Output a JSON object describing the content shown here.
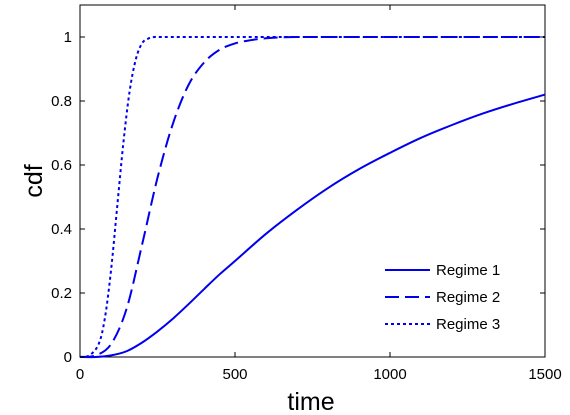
{
  "chart_data": {
    "type": "line",
    "xlabel": "time",
    "ylabel": "cdf",
    "xlim": [
      0,
      1500
    ],
    "ylim": [
      0,
      1.1
    ],
    "xticks": [
      0,
      500,
      1000,
      1500
    ],
    "yticks": [
      0,
      0.2,
      0.4,
      0.6,
      0.8,
      1
    ],
    "ytick_labels": [
      "0",
      "0.2",
      "0.4",
      "0.6",
      "0.8",
      "1"
    ],
    "xtick_labels": [
      "0",
      "500",
      "1000",
      "1500"
    ],
    "grid": false,
    "legend_position": "bottom-right",
    "line_color": "#0000ee",
    "series": [
      {
        "name": "Regime 1",
        "style": "solid",
        "x": [
          0,
          50,
          100,
          150,
          200,
          250,
          300,
          350,
          400,
          450,
          500,
          600,
          700,
          800,
          900,
          1000,
          1100,
          1200,
          1300,
          1400,
          1500
        ],
        "y": [
          0,
          0,
          0.005,
          0.018,
          0.045,
          0.08,
          0.12,
          0.165,
          0.212,
          0.258,
          0.3,
          0.385,
          0.46,
          0.528,
          0.587,
          0.638,
          0.685,
          0.725,
          0.761,
          0.792,
          0.82
        ]
      },
      {
        "name": "Regime 2",
        "style": "dashed",
        "x": [
          0,
          50,
          100,
          150,
          200,
          250,
          300,
          350,
          400,
          450,
          500,
          550,
          600,
          650,
          700,
          800,
          1000,
          1200,
          1500
        ],
        "y": [
          0,
          0.005,
          0.04,
          0.15,
          0.35,
          0.56,
          0.73,
          0.85,
          0.92,
          0.96,
          0.98,
          0.99,
          0.996,
          0.999,
          1,
          1,
          1,
          1,
          1
        ]
      },
      {
        "name": "Regime 3",
        "style": "dotted",
        "x": [
          0,
          30,
          60,
          80,
          100,
          120,
          140,
          160,
          180,
          200,
          220,
          240,
          260,
          300,
          400,
          600,
          1000,
          1500
        ],
        "y": [
          0,
          0.005,
          0.04,
          0.12,
          0.27,
          0.47,
          0.67,
          0.83,
          0.93,
          0.98,
          0.995,
          1,
          1,
          1,
          1,
          1,
          1,
          1
        ]
      }
    ]
  }
}
